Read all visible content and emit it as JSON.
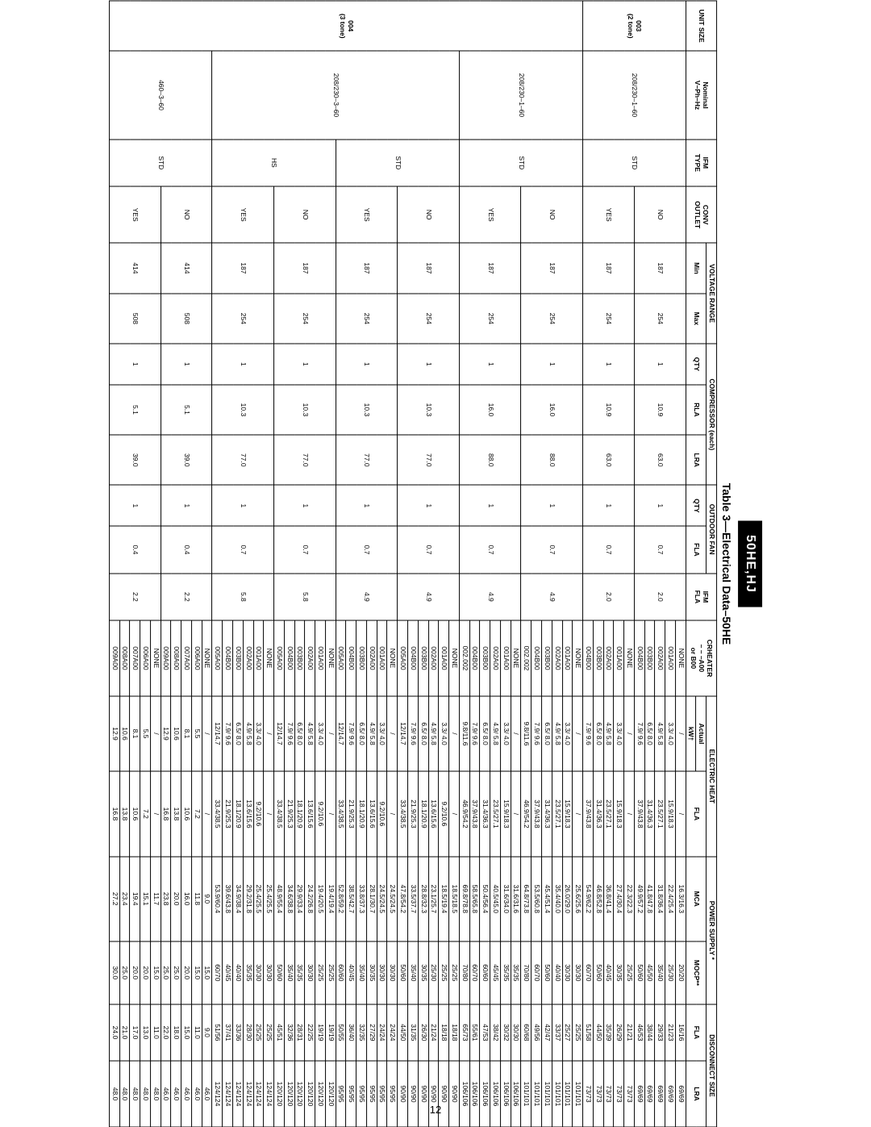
{
  "pageNumber": "12",
  "badge": "50HE,HJ",
  "caption": "Table 3—Electrical Data–50HE",
  "headerRow1": {
    "unitSize": "UNIT SIZE",
    "nominal": "Nominal\nV–Ph–Hz",
    "ifmType": "IFM\nTYPE",
    "convOutlet": "CONV\nOUTLET",
    "voltageRange": "VOLTAGE RANGE",
    "compressor": "COMPRESSOR (each)",
    "outdoorFan": "OUTDOOR FAN",
    "ifmFla": "IFM\nFLA",
    "crheater": "CRHEATER\n– – –A00\nor B00",
    "electricHeat": "ELECTRIC HEAT",
    "powerSupply": "POWER SUPPLY *",
    "disconnect": "DISCONNECT SIZE"
  },
  "headerRow2": {
    "min": "Min",
    "max": "Max",
    "cQty": "QTY",
    "rla": "RLA",
    "lra": "LRA",
    "oQty": "QTY",
    "oFla": "FLA",
    "actual": "Actual",
    "hFla": "FLA",
    "mca": "MCA",
    "mocp": "MOCP**",
    "dFla": "FLA",
    "dLra": "LRA"
  },
  "headerRow3": {
    "kwt": "kW†"
  },
  "blocks": [
    {
      "unitSize": "003\n(2 tone)",
      "nominal": "208/230–1–60",
      "ifmType": "STD",
      "subblocks": [
        {
          "conv": "NO",
          "min": "187",
          "max": "254",
          "cQty": "1",
          "rla": "10.9",
          "lra": "63.0",
          "oQty": "1",
          "oFla": "0.7",
          "ifmFla": "2.0",
          "rows": [
            {
              "crh": "NONE",
              "kwt": "/",
              "hfla": "/",
              "mca": "16.3/16.3",
              "mocp": "20/20",
              "dfla": "16/16",
              "dlra": "69/69"
            },
            {
              "crh": "001A00",
              "kwt": "3.3/ 4.0",
              "hfla": "15.9/18.3",
              "mca": "22.4/25.4",
              "mocp": "25/30",
              "dfla": "21/23",
              "dlra": "69/69"
            },
            {
              "crh": "002A00",
              "kwt": "4.9/ 5.8",
              "hfla": "23.5/27.1",
              "mca": "31.8/36.4",
              "mocp": "35/40",
              "dfla": "29/33",
              "dlra": "69/69"
            },
            {
              "crh": "003B00",
              "kwt": "6.5/ 8.0",
              "hfla": "31.4/36.3",
              "mca": "41.8/47.8",
              "mocp": "45/50",
              "dfla": "38/44",
              "dlra": "69/69"
            },
            {
              "crh": "004B00",
              "kwt": "7.9/ 9.6",
              "hfla": "37.9/43.8",
              "mca": "49.9/57.2",
              "mocp": "50/60",
              "dfla": "46/53",
              "dlra": "69/69"
            }
          ]
        },
        {
          "conv": "YES",
          "min": "187",
          "max": "254",
          "cQty": "1",
          "rla": "10.9",
          "lra": "63.0",
          "oQty": "1",
          "oFla": "0.7",
          "ifmFla": "2.0",
          "rows": [
            {
              "crh": "NONE",
              "kwt": "/",
              "hfla": "/",
              "mca": "22.3/22.3",
              "mocp": "25/25",
              "dfla": "21/21",
              "dlra": "73/73"
            },
            {
              "crh": "001A00",
              "kwt": "3.3/ 4.0",
              "hfla": "15.9/18.3",
              "mca": "27.4/30.4",
              "mocp": "30/35",
              "dfla": "26/29",
              "dlra": "73/73"
            },
            {
              "crh": "002A00",
              "kwt": "4.9/ 5.8",
              "hfla": "23.5/27.1",
              "mca": "36.8/41.4",
              "mocp": "40/45",
              "dfla": "35/39",
              "dlra": "73/73"
            },
            {
              "crh": "003B00",
              "kwt": "6.5/ 8.0",
              "hfla": "31.4/36.3",
              "mca": "46.8/52.8",
              "mocp": "50/60",
              "dfla": "44/50",
              "dlra": "73/73"
            },
            {
              "crh": "004B00",
              "kwt": "7.9/ 9.6",
              "hfla": "37.9/43.8",
              "mca": "54.9/62.2",
              "mocp": "60/70",
              "dfla": "51/58",
              "dlra": "73/73"
            }
          ]
        }
      ]
    },
    {
      "unitSize": "004\n(3 tone)",
      "nominal": "208/230–1–60",
      "ifmType": "STD",
      "subblocks": [
        {
          "conv": "NO",
          "min": "187",
          "max": "254",
          "cQty": "1",
          "rla": "16.0",
          "lra": "88.0",
          "oQty": "1",
          "oFla": "0.7",
          "ifmFla": "4.9",
          "rows": [
            {
              "crh": "NONE",
              "kwt": "/",
              "hfla": "/",
              "mca": "25.6/25.6",
              "mocp": "30/30",
              "dfla": "25/25",
              "dlra": "101/101"
            },
            {
              "crh": "001A00",
              "kwt": "3.3/ 4.0",
              "hfla": "15.9/18.3",
              "mca": "26.0/29.0",
              "mocp": "30/30",
              "dfla": "25/27",
              "dlra": "101/101"
            },
            {
              "crh": "002A00",
              "kwt": "4.9/ 5.8",
              "hfla": "23.5/27.1",
              "mca": "35.4/40.0",
              "mocp": "40/40",
              "dfla": "33/37",
              "dlra": "101/101"
            },
            {
              "crh": "003B00",
              "kwt": "6.5/ 8.0",
              "hfla": "31.4/36.3",
              "mca": "45.4/51.4",
              "mocp": "50/60",
              "dfla": "42/47",
              "dlra": "101/101"
            },
            {
              "crh": "004B00",
              "kwt": "7.9/ 9.6",
              "hfla": "37.9/43.8",
              "mca": "53.5/60.8",
              "mocp": "60/70",
              "dfla": "49/56",
              "dlra": "101/101"
            },
            {
              "crh": "002.002",
              "kwt": "9.8/11.6",
              "hfla": "46.9/54.2",
              "mca": "64.8/73.8",
              "mocp": "70/80",
              "dfla": "60/68",
              "dlra": "101/101"
            }
          ]
        },
        {
          "conv": "YES",
          "min": "187",
          "max": "254",
          "cQty": "1",
          "rla": "16.0",
          "lra": "88.0",
          "oQty": "1",
          "oFla": "0.7",
          "ifmFla": "4.9",
          "rows": [
            {
              "crh": "NONE",
              "kwt": "/",
              "hfla": "/",
              "mca": "31.6/31.6",
              "mocp": "35/35",
              "dfla": "30/30",
              "dlra": "106/106"
            },
            {
              "crh": "001A00",
              "kwt": "3.3/ 4.0",
              "hfla": "15.9/18.3",
              "mca": "31.6/34.0",
              "mocp": "35/35",
              "dfla": "30/32",
              "dlra": "106/106"
            },
            {
              "crh": "002A00",
              "kwt": "4.9/ 5.8",
              "hfla": "23.5/27.1",
              "mca": "40.5/45.0",
              "mocp": "45/45",
              "dfla": "38/42",
              "dlra": "106/106"
            },
            {
              "crh": "003B00",
              "kwt": "6.5/ 8.0",
              "hfla": "31.4/36.3",
              "mca": "50.4/56.4",
              "mocp": "60/60",
              "dfla": "47/53",
              "dlra": "106/106"
            },
            {
              "crh": "004B00",
              "kwt": "7.9/ 9.6",
              "hfla": "37.9/43.8",
              "mca": "58.5/65.8",
              "mocp": "60/70",
              "dfla": "55/61",
              "dlra": "106/106"
            },
            {
              "crh": "002.002",
              "kwt": "9.8/11.6",
              "hfla": "46.9/54.2",
              "mca": "69.8/78.8",
              "mocp": "70/80",
              "dfla": "65/73",
              "dlra": "106/106"
            }
          ]
        }
      ]
    },
    {
      "unitSize": "",
      "nominal": "208/230–3–60",
      "ifmType": "STD",
      "subblocks": [
        {
          "conv": "NO",
          "min": "187",
          "max": "254",
          "cQty": "1",
          "rla": "10.3",
          "lra": "77.0",
          "oQty": "1",
          "oFla": "0.7",
          "ifmFla": "4.9",
          "rows": [
            {
              "crh": "NONE",
              "kwt": "/",
              "hfla": "/",
              "mca": "18.5/18.5",
              "mocp": "25/25",
              "dfla": "18/18",
              "dlra": "90/90"
            },
            {
              "crh": "001A00",
              "kwt": "3.3/ 4.0",
              "hfla": "9.2/10.6",
              "mca": "18.5/19.4",
              "mocp": "25/25",
              "dfla": "18/18",
              "dlra": "90/90"
            },
            {
              "crh": "002A00",
              "kwt": "4.9/ 5.8",
              "hfla": "13.6/15.6",
              "mca": "23.1/25.7",
              "mocp": "25/30",
              "dfla": "21/24",
              "dlra": "90/90"
            },
            {
              "crh": "003B00",
              "kwt": "6.5/ 8.0",
              "hfla": "18.1/20.9",
              "mca": "28.8/32.3",
              "mocp": "30/35",
              "dfla": "26/30",
              "dlra": "90/90"
            },
            {
              "crh": "004B00",
              "kwt": "7.9/ 9.6",
              "hfla": "21.9/25.3",
              "mca": "33.5/37.7",
              "mocp": "35/40",
              "dfla": "31/35",
              "dlra": "90/90"
            },
            {
              "crh": "005A00",
              "kwt": "12/14.7",
              "hfla": "33.4/38.5",
              "mca": "47.8/54.2",
              "mocp": "50/60",
              "dfla": "44/50",
              "dlra": "90/90"
            }
          ]
        },
        {
          "conv": "YES",
          "min": "187",
          "max": "254",
          "cQty": "1",
          "rla": "10.3",
          "lra": "77.0",
          "oQty": "1",
          "oFla": "0.7",
          "ifmFla": "4.9",
          "rows": [
            {
              "crh": "NONE",
              "kwt": "/",
              "hfla": "/",
              "mca": "24.5/24.5",
              "mocp": "30/30",
              "dfla": "24/24",
              "dlra": "95/95"
            },
            {
              "crh": "001A00",
              "kwt": "3.3/ 4.0",
              "hfla": "9.2/10.6",
              "mca": "24.5/24.5",
              "mocp": "30/30",
              "dfla": "24/24",
              "dlra": "95/95"
            },
            {
              "crh": "002A00",
              "kwt": "4.9/ 5.8",
              "hfla": "13.6/15.6",
              "mca": "28.1/30.7",
              "mocp": "30/35",
              "dfla": "27/29",
              "dlra": "95/95"
            },
            {
              "crh": "003B00",
              "kwt": "6.5/ 8.0",
              "hfla": "18.1/20.9",
              "mca": "33.8/37.3",
              "mocp": "35/40",
              "dfla": "32/35",
              "dlra": "95/95"
            },
            {
              "crh": "004B00",
              "kwt": "7.9/ 9.6",
              "hfla": "21.9/25.3",
              "mca": "38.5/42.7",
              "mocp": "40/45",
              "dfla": "36/40",
              "dlra": "95/95"
            },
            {
              "crh": "005A00",
              "kwt": "12/14.7",
              "hfla": "33.4/38.5",
              "mca": "52.8/59.2",
              "mocp": "60/60",
              "dfla": "50/55",
              "dlra": "95/95"
            }
          ]
        }
      ]
    },
    {
      "unitSize": "",
      "nominal": "",
      "ifmType": "HS",
      "subblocks": [
        {
          "conv": "NO",
          "min": "187",
          "max": "254",
          "cQty": "1",
          "rla": "10.3",
          "lra": "77.0",
          "oQty": "1",
          "oFla": "0.7",
          "ifmFla": "5.8",
          "rows": [
            {
              "crh": "NONE",
              "kwt": "/",
              "hfla": "/",
              "mca": "19.4/19.4",
              "mocp": "25/25",
              "dfla": "19/19",
              "dlra": "120/120"
            },
            {
              "crh": "001A00",
              "kwt": "3.3/ 4.0",
              "hfla": "9.2/10.6",
              "mca": "19.4/20.5",
              "mocp": "25/25",
              "dfla": "19/19",
              "dlra": "120/120"
            },
            {
              "crh": "002A00",
              "kwt": "4.9/ 5.8",
              "hfla": "13.6/15.6",
              "mca": "24.2/26.8",
              "mocp": "30/30",
              "dfla": "22/25",
              "dlra": "120/120"
            },
            {
              "crh": "003B00",
              "kwt": "6.5/ 8.0",
              "hfla": "18.1/20.9",
              "mca": "29.9/33.4",
              "mocp": "35/35",
              "dfla": "28/31",
              "dlra": "120/120"
            },
            {
              "crh": "004B00",
              "kwt": "7.9/ 9.6",
              "hfla": "21.9/25.3",
              "mca": "34.6/38.8",
              "mocp": "35/40",
              "dfla": "32/36",
              "dlra": "120/120"
            },
            {
              "crh": "005A00",
              "kwt": "12/14.7",
              "hfla": "33.4/38.5",
              "mca": "48.9/55.4",
              "mocp": "50/60",
              "dfla": "45/51",
              "dlra": "120/120"
            }
          ]
        },
        {
          "conv": "YES",
          "min": "187",
          "max": "254",
          "cQty": "1",
          "rla": "10.3",
          "lra": "77.0",
          "oQty": "1",
          "oFla": "0.7",
          "ifmFla": "5.8",
          "rows": [
            {
              "crh": "NONE",
              "kwt": "/",
              "hfla": "/",
              "mca": "25.4/25.5",
              "mocp": "30/30",
              "dfla": "25/25",
              "dlra": "124/124"
            },
            {
              "crh": "001A00",
              "kwt": "3.3/ 4.0",
              "hfla": "9.2/10.6",
              "mca": "25.4/25.5",
              "mocp": "30/30",
              "dfla": "25/25",
              "dlra": "124/124"
            },
            {
              "crh": "002A00",
              "kwt": "4.9/ 5.8",
              "hfla": "13.6/15.6",
              "mca": "29.2/31.8",
              "mocp": "35/35",
              "dfla": "28/30",
              "dlra": "124/124"
            },
            {
              "crh": "003B00",
              "kwt": "6.5/ 8.0",
              "hfla": "18.1/20.9",
              "mca": "34.9/38.4",
              "mocp": "40/40",
              "dfla": "33/36",
              "dlra": "124/124"
            },
            {
              "crh": "004B00",
              "kwt": "7.9/ 9.6",
              "hfla": "21.9/25.3",
              "mca": "39.6/43.8",
              "mocp": "40/45",
              "dfla": "37/41",
              "dlra": "124/124"
            },
            {
              "crh": "005A00",
              "kwt": "12/14.7",
              "hfla": "33.4/38.5",
              "mca": "53.9/60.4",
              "mocp": "60/70",
              "dfla": "51/56",
              "dlra": "124/124"
            }
          ]
        }
      ]
    },
    {
      "unitSize": "",
      "nominal": "460–3–60",
      "ifmType": "STD",
      "subblocks": [
        {
          "conv": "NO",
          "min": "414",
          "max": "508",
          "cQty": "1",
          "rla": "5.1",
          "lra": "39.0",
          "oQty": "1",
          "oFla": "0.4",
          "ifmFla": "2.2",
          "rows": [
            {
              "crh": "NONE",
              "kwt": "/",
              "hfla": "/",
              "mca": "9.0",
              "mocp": "15.0",
              "dfla": "9.0",
              "dlra": "46.0"
            },
            {
              "crh": "006A00",
              "kwt": "5.5",
              "hfla": "7.2",
              "mca": "11.8",
              "mocp": "15.0",
              "dfla": "11.0",
              "dlra": "46.0"
            },
            {
              "crh": "007A00",
              "kwt": "8.1",
              "hfla": "10.6",
              "mca": "16.0",
              "mocp": "20.0",
              "dfla": "15.0",
              "dlra": "46.0"
            },
            {
              "crh": "008A00",
              "kwt": "10.6",
              "hfla": "13.8",
              "mca": "20.0",
              "mocp": "25.0",
              "dfla": "18.0",
              "dlra": "46.0"
            },
            {
              "crh": "009A00",
              "kwt": "12.9",
              "hfla": "16.8",
              "mca": "23.8",
              "mocp": "25.0",
              "dfla": "22.0",
              "dlra": "46.0"
            }
          ]
        },
        {
          "conv": "YES",
          "min": "414",
          "max": "508",
          "cQty": "1",
          "rla": "5.1",
          "lra": "39.0",
          "oQty": "1",
          "oFla": "0.4",
          "ifmFla": "2.2",
          "rows": [
            {
              "crh": "NONE",
              "kwt": "/",
              "hfla": "/",
              "mca": "11.7",
              "mocp": "15.0",
              "dfla": "11.0",
              "dlra": "48.0"
            },
            {
              "crh": "006A00",
              "kwt": "5.5",
              "hfla": "7.2",
              "mca": "15.1",
              "mocp": "20.0",
              "dfla": "13.0",
              "dlra": "48.0"
            },
            {
              "crh": "007A00",
              "kwt": "8.1",
              "hfla": "10.6",
              "mca": "19.4",
              "mocp": "20.0",
              "dfla": "17.0",
              "dlra": "48.0"
            },
            {
              "crh": "008A00",
              "kwt": "10.6",
              "hfla": "13.8",
              "mca": "23.4",
              "mocp": "25.0",
              "dfla": "21.0",
              "dlra": "48.0"
            },
            {
              "crh": "009A00",
              "kwt": "12.9",
              "hfla": "16.8",
              "mca": "27.2",
              "mocp": "30.0",
              "dfla": "24.0",
              "dlra": "48.0"
            }
          ]
        }
      ]
    }
  ],
  "colors": {
    "badgeBg": "#000000",
    "badgeFg": "#ffffff",
    "border": "#000000",
    "text": "#000000"
  }
}
